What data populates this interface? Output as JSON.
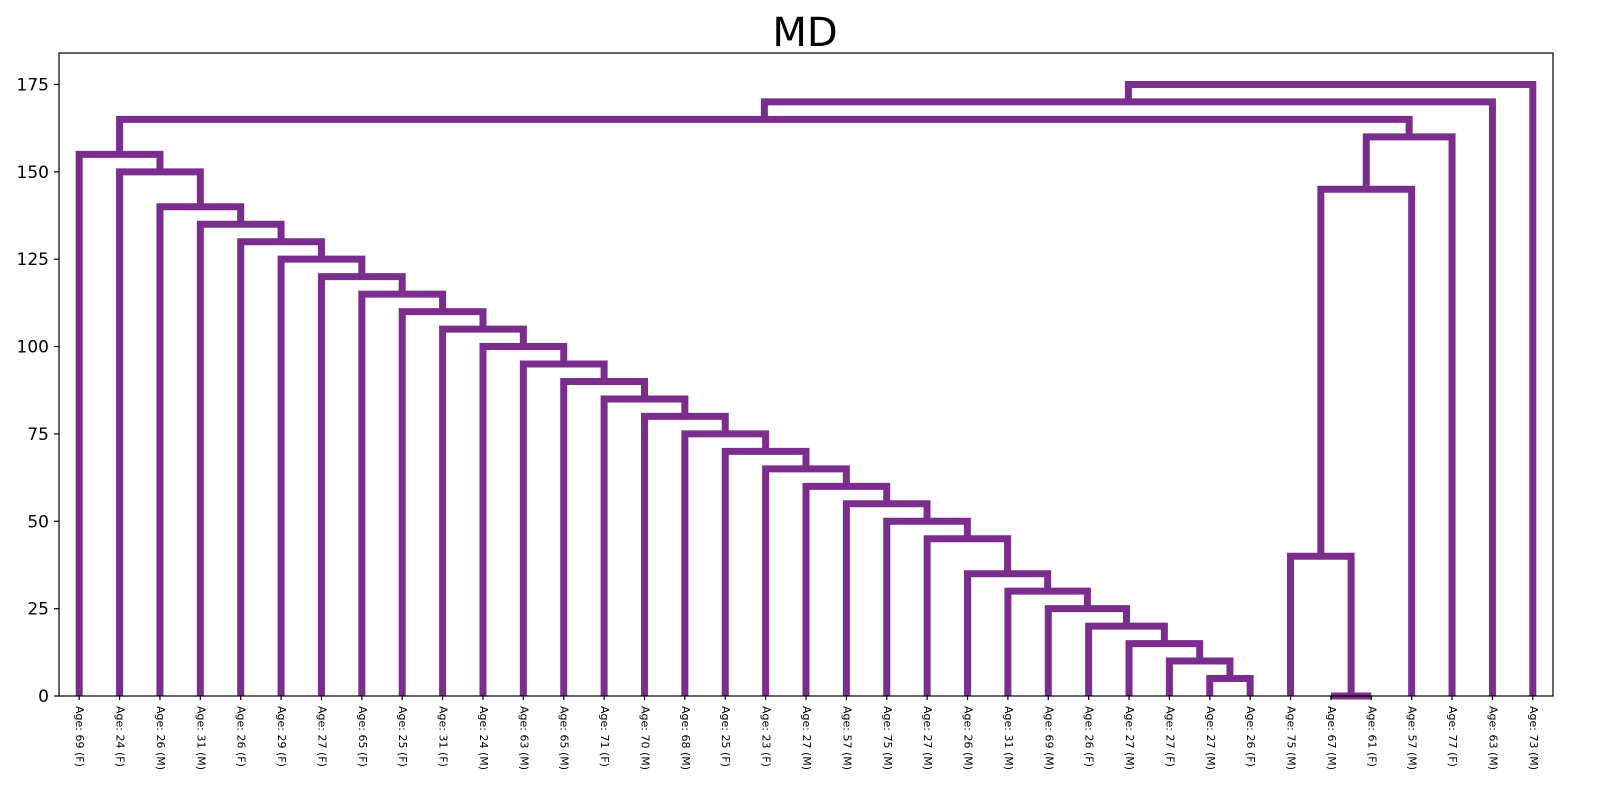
{
  "chart_data": {
    "type": "dendrogram",
    "title": "MD",
    "xlabel": "",
    "ylabel": "",
    "ylim": [
      0,
      184
    ],
    "yticks": [
      0,
      25,
      50,
      75,
      100,
      125,
      150,
      175
    ],
    "grid": false,
    "link_color": "#7b2d8e",
    "leaves": [
      "Age: 69 (F)",
      "Age: 24 (F)",
      "Age: 26 (M)",
      "Age: 31 (M)",
      "Age: 26 (F)",
      "Age: 29 (F)",
      "Age: 27 (F)",
      "Age: 65 (F)",
      "Age: 25 (F)",
      "Age: 31 (F)",
      "Age: 24 (M)",
      "Age: 63 (M)",
      "Age: 65 (M)",
      "Age: 71 (F)",
      "Age: 70 (M)",
      "Age: 68 (M)",
      "Age: 25 (F)",
      "Age: 23 (F)",
      "Age: 27 (M)",
      "Age: 57 (M)",
      "Age: 75 (M)",
      "Age: 27 (M)",
      "Age: 26 (M)",
      "Age: 31 (M)",
      "Age: 69 (M)",
      "Age: 26 (F)",
      "Age: 27 (M)",
      "Age: 27 (F)",
      "Age: 27 (M)",
      "Age: 26 (F)",
      "Age: 75 (M)",
      "Age: 67 (M)",
      "Age: 61 (F)",
      "Age: 57 (M)",
      "Age: 77 (F)",
      "Age: 63 (M)",
      "Age: 73 (M)"
    ],
    "merges": [
      {
        "id": "c1",
        "left": 28,
        "right": 29,
        "height": 5
      },
      {
        "id": "c2",
        "left": 27,
        "right": "c1",
        "height": 10
      },
      {
        "id": "c3",
        "left": 26,
        "right": "c2",
        "height": 15
      },
      {
        "id": "c4",
        "left": 25,
        "right": "c3",
        "height": 20
      },
      {
        "id": "c5",
        "left": 24,
        "right": "c4",
        "height": 25
      },
      {
        "id": "c6",
        "left": 23,
        "right": "c5",
        "height": 30
      },
      {
        "id": "c7",
        "left": 22,
        "right": "c6",
        "height": 35
      },
      {
        "id": "c8",
        "left": 21,
        "right": "c7",
        "height": 45
      },
      {
        "id": "c9",
        "left": 20,
        "right": "c8",
        "height": 50
      },
      {
        "id": "c10",
        "left": 19,
        "right": "c9",
        "height": 55
      },
      {
        "id": "c11",
        "left": 18,
        "right": "c10",
        "height": 60
      },
      {
        "id": "c12",
        "left": 17,
        "right": "c11",
        "height": 65
      },
      {
        "id": "c13",
        "left": 16,
        "right": "c12",
        "height": 70
      },
      {
        "id": "c14",
        "left": 15,
        "right": "c13",
        "height": 75
      },
      {
        "id": "c15",
        "left": 14,
        "right": "c14",
        "height": 80
      },
      {
        "id": "c16",
        "left": 13,
        "right": "c15",
        "height": 85
      },
      {
        "id": "c17",
        "left": 12,
        "right": "c16",
        "height": 90
      },
      {
        "id": "c18",
        "left": 11,
        "right": "c17",
        "height": 95
      },
      {
        "id": "c19",
        "left": 10,
        "right": "c18",
        "height": 100
      },
      {
        "id": "c20",
        "left": 9,
        "right": "c19",
        "height": 105
      },
      {
        "id": "c21",
        "left": 8,
        "right": "c20",
        "height": 110
      },
      {
        "id": "c22",
        "left": 7,
        "right": "c21",
        "height": 115
      },
      {
        "id": "c23",
        "left": 6,
        "right": "c22",
        "height": 120
      },
      {
        "id": "c24",
        "left": 5,
        "right": "c23",
        "height": 125
      },
      {
        "id": "c25",
        "left": 4,
        "right": "c24",
        "height": 130
      },
      {
        "id": "c26",
        "left": 3,
        "right": "c25",
        "height": 135
      },
      {
        "id": "c27",
        "left": 2,
        "right": "c26",
        "height": 140
      },
      {
        "id": "c28",
        "left": 1,
        "right": "c27",
        "height": 150
      },
      {
        "id": "c29",
        "left": 0,
        "right": "c28",
        "height": 155
      },
      {
        "id": "c30",
        "left": 31,
        "right": 32,
        "height": 0
      },
      {
        "id": "c31",
        "left": 30,
        "right": "c30",
        "height": 40
      },
      {
        "id": "c32",
        "left": "c31",
        "right": 33,
        "height": 145
      },
      {
        "id": "c33",
        "left": "c32",
        "right": 34,
        "height": 160
      },
      {
        "id": "c34",
        "left": "c29",
        "right": "c33",
        "height": 165
      },
      {
        "id": "c35",
        "left": "c34",
        "right": 35,
        "height": 170
      },
      {
        "id": "c36",
        "left": "c35",
        "right": 36,
        "height": 175
      }
    ]
  }
}
